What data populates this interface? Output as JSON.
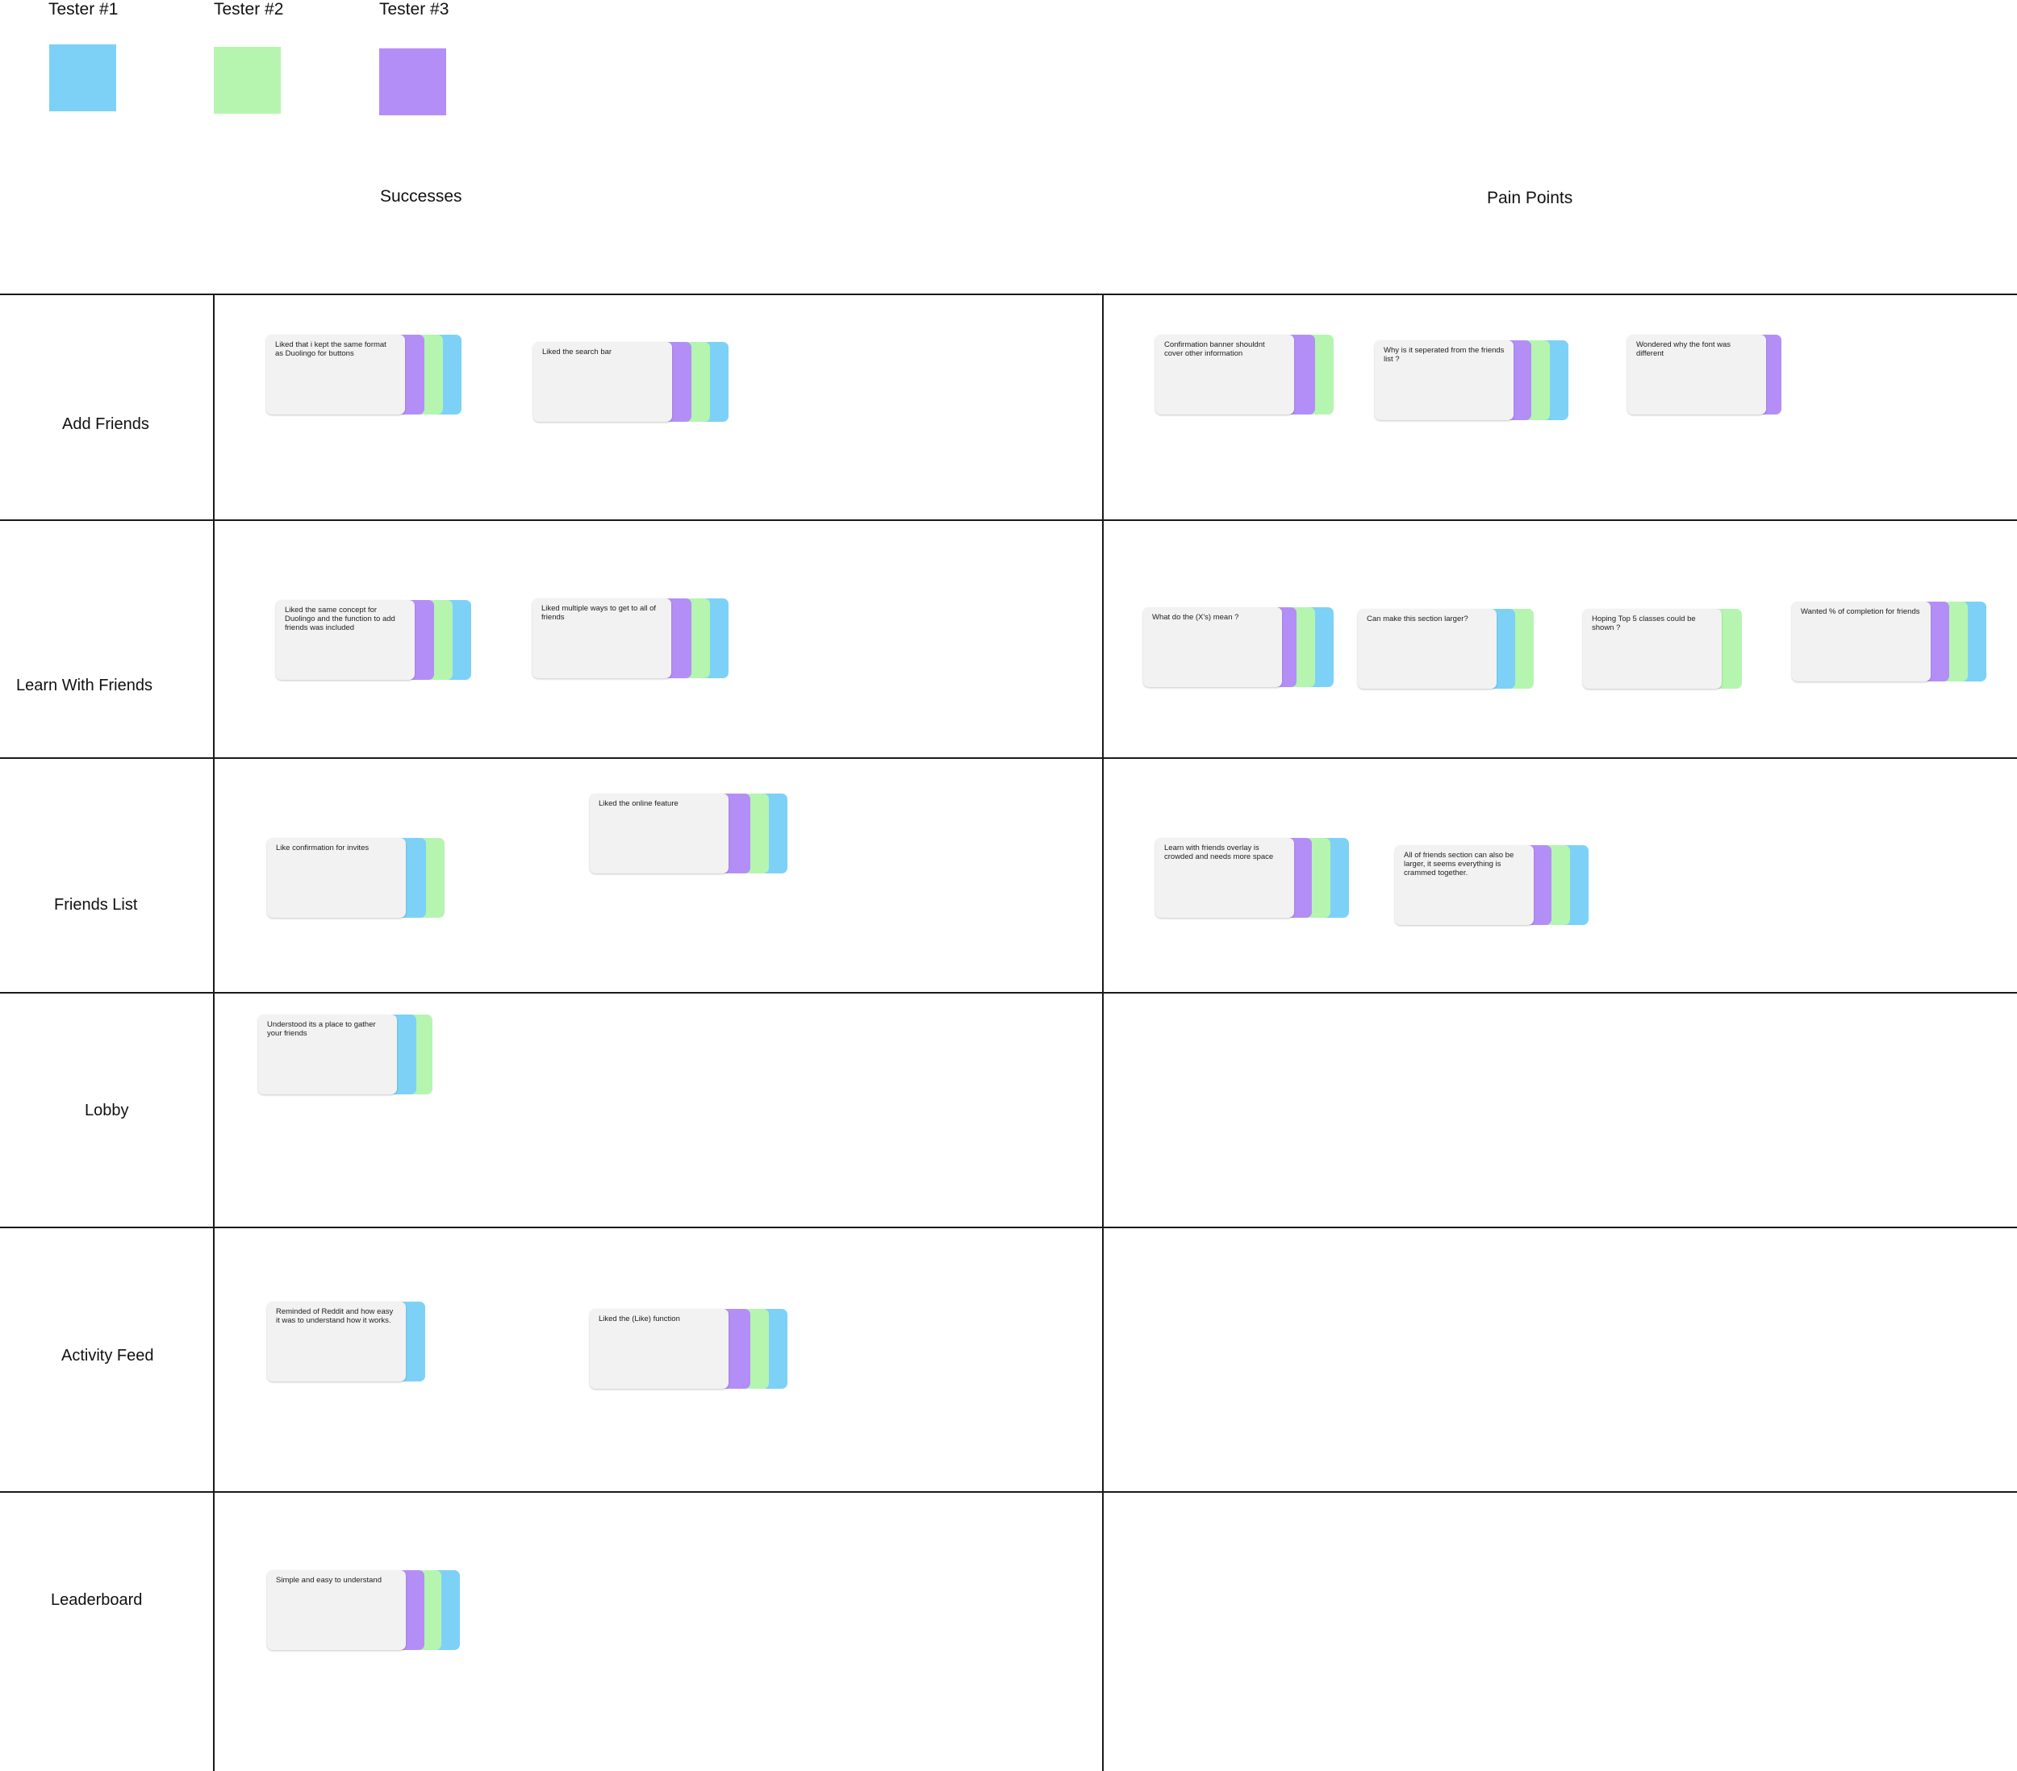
{
  "legend": [
    {
      "label": "Tester #1",
      "color": "#7dd1f7"
    },
    {
      "label": "Tester #2",
      "color": "#b5f5b0"
    },
    {
      "label": "Tester #3",
      "color": "#b48ef7"
    }
  ],
  "columns": {
    "successes": "Successes",
    "pain_points": "Pain Points"
  },
  "rows": [
    "Add Friends",
    "Learn With Friends",
    "Friends List",
    "Lobby",
    "Activity Feed",
    "Leaderboard"
  ],
  "notes": {
    "add_friends": {
      "s1": "Liked that i kept the same format as Duolingo for buttons",
      "s2": "Liked the search bar",
      "p1": "Confirmation banner shouldnt cover other information",
      "p2": "Why is it seperated from the friends list ?",
      "p3": "Wondered why the font was different"
    },
    "learn_with_friends": {
      "s1": "Liked the same concept for Duolingo and the function to add friends was included",
      "s2": "Liked multiple ways to get to all of friends",
      "p1": "What do the (X's) mean ?",
      "p2": "Can make this section larger?",
      "p3": "Hoping Top 5 classes could be shown ?",
      "p4": "Wanted % of completion for friends"
    },
    "friends_list": {
      "s1": "Like confirmation for invites",
      "s2": "Liked the online feature",
      "p1": "Learn with friends overlay is crowded and needs more space",
      "p2": "All of friends section can also be larger, it seems everything is crammed together."
    },
    "lobby": {
      "s1": "Understood its a place to gather your friends"
    },
    "activity_feed": {
      "s1": "Reminded of Reddit and how easy it was to understand how it works.",
      "s2": "Liked the (Like) function"
    },
    "leaderboard": {
      "s1": "Simple and easy to understand"
    }
  }
}
